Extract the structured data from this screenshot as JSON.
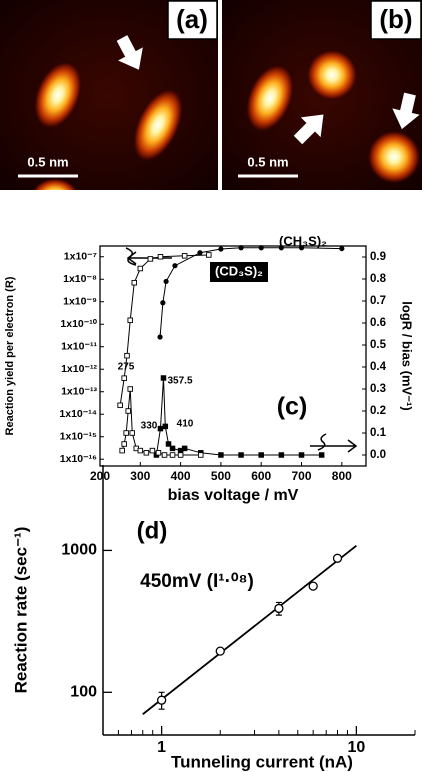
{
  "images": [
    {
      "label": "(a)",
      "scale_bar": "0.5 nm"
    },
    {
      "label": "(b)",
      "scale_bar": "0.5 nm"
    }
  ],
  "chart_data": [
    {
      "type": "line",
      "annotations": [
        {
          "text": "(CH₃S)₂"
        },
        {
          "text": "(CD₃S)₂"
        },
        {
          "text": "275"
        },
        {
          "text": "330"
        },
        {
          "text": "357.5"
        },
        {
          "text": "410"
        },
        {
          "text": "(c)"
        }
      ],
      "xlabel": "bias voltage / mV",
      "ylabel": "Reaction yield per electron (R)",
      "y2label": "logR / bias (mV⁻¹)",
      "xlim": [
        200,
        860
      ],
      "xticks": [
        200,
        300,
        400,
        500,
        600,
        700,
        800
      ],
      "ylog": true,
      "ylim": [
        5e-17,
        3e-07
      ],
      "yticks": [
        {
          "value": 1e-16,
          "label": "1x10⁻¹⁶"
        },
        {
          "value": 1e-15,
          "label": "1x10⁻¹⁵"
        },
        {
          "value": 1e-14,
          "label": "1x10⁻¹⁴"
        },
        {
          "value": 1e-13,
          "label": "1x10⁻¹³"
        },
        {
          "value": 1e-12,
          "label": "1x10⁻¹²"
        },
        {
          "value": 1e-11,
          "label": "1x10⁻¹¹"
        },
        {
          "value": 1e-10,
          "label": "1x10⁻¹⁰"
        },
        {
          "value": 1e-09,
          "label": "1x10⁻⁹"
        },
        {
          "value": 1e-08,
          "label": "1x10⁻⁸"
        },
        {
          "value": 1e-07,
          "label": "1x10⁻⁷"
        }
      ],
      "y2lim": [
        -0.05,
        0.95
      ],
      "y2ticks": [
        {
          "value": 0,
          "label": "0.0"
        },
        0.1,
        0.2,
        0.3,
        0.4,
        0.5,
        0.6,
        0.7,
        0.8,
        0.9
      ],
      "series": [
        {
          "color": "#000000",
          "marker": "circle-filled",
          "axis": "y",
          "x": [
            349,
            356,
            364,
            386,
            448,
            500,
            550,
            600,
            650,
            700,
            800
          ],
          "values": [
            2.7e-11,
            9e-10,
            8e-09,
            4e-08,
            1.5e-07,
            2.2e-07,
            2.5e-07,
            2.5e-07,
            2.5e-07,
            2.5e-07,
            2.3e-07
          ]
        },
        {
          "color": "#000000",
          "marker": "square-open",
          "axis": "y",
          "x": [
            250,
            260,
            267,
            275,
            285,
            300,
            325,
            350,
            410,
            470
          ],
          "values": [
            2.5e-14,
            4e-13,
            4e-12,
            1.5e-10,
            7e-09,
            3e-08,
            8e-08,
            1e-07,
            1.1e-07,
            1.2e-07
          ]
        },
        {
          "color": "#000000",
          "marker": "square-filled",
          "axis": "y2",
          "x": [
            340,
            350,
            357.5,
            362,
            370,
            380,
            400,
            410,
            450,
            500,
            550,
            600,
            650,
            700,
            750
          ],
          "values": [
            0.0,
            0.12,
            0.35,
            0.13,
            0.05,
            0.03,
            0.02,
            0.03,
            0.01,
            0.0,
            0.0,
            0.0,
            0.0,
            0.0,
            0.0
          ]
        },
        {
          "color": "#000000",
          "marker": "square-open",
          "axis": "y2",
          "x": [
            255,
            260,
            265,
            270,
            275,
            280,
            290,
            300,
            315,
            330,
            345,
            360,
            380,
            400,
            450
          ],
          "values": [
            0.02,
            0.05,
            0.1,
            0.2,
            0.3,
            0.1,
            0.03,
            0.02,
            0.01,
            0.02,
            0.01,
            0.0,
            0.0,
            0.0,
            0.0
          ]
        }
      ]
    },
    {
      "type": "scatter",
      "annotations": [
        {
          "text": "(d)"
        },
        {
          "text": "450mV (I¹·⁰⁸)"
        }
      ],
      "xlabel": "Tunneling current (nA)",
      "ylabel": "Reaction rate (sec⁻¹)",
      "xlog": true,
      "ylog": true,
      "xlim": [
        0.5,
        20
      ],
      "xticks": [
        1,
        10
      ],
      "xminorticks": [
        0.6,
        0.7,
        0.8,
        0.9,
        2,
        3,
        4,
        5,
        6,
        7,
        8,
        9,
        20
      ],
      "ylim": [
        50,
        4000
      ],
      "yticks": [
        100,
        1000
      ],
      "color": "#000000",
      "x": [
        1,
        2,
        4,
        6,
        8
      ],
      "values": [
        88,
        195,
        390,
        560,
        880
      ],
      "errors": [
        12,
        8,
        40,
        25,
        25
      ],
      "fit": {
        "x": [
          0.8,
          10
        ],
        "values": [
          70,
          1080
        ]
      }
    }
  ]
}
